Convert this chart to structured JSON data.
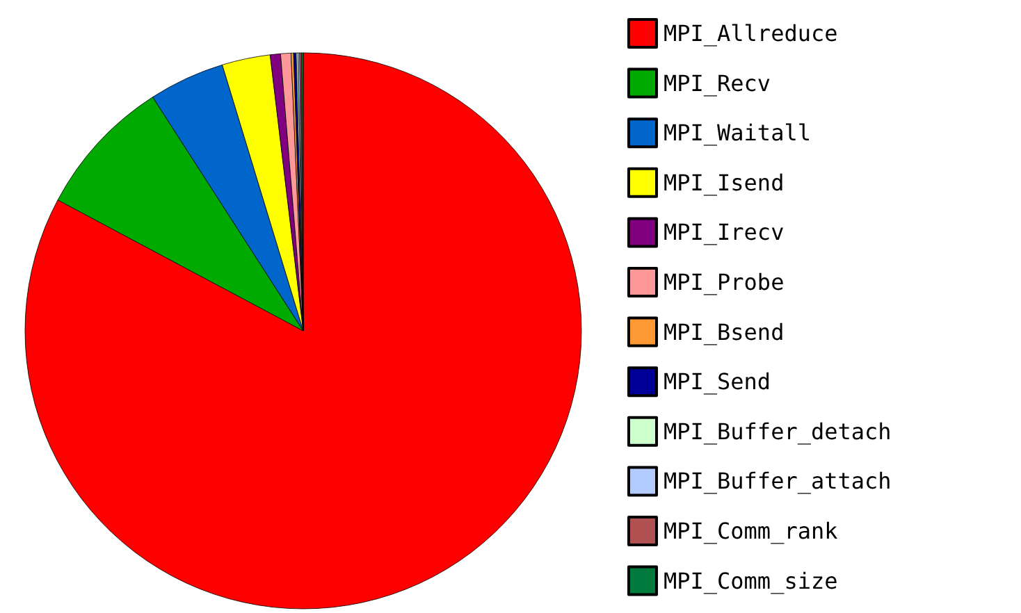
{
  "chart_data": {
    "type": "pie",
    "legend": "right",
    "categories": [
      "MPI_Allreduce",
      "MPI_Recv",
      "MPI_Waitall",
      "MPI_Isend",
      "MPI_Irecv",
      "MPI_Probe",
      "MPI_Bsend",
      "MPI_Send",
      "MPI_Buffer_detach",
      "MPI_Buffer_attach",
      "MPI_Comm_rank",
      "MPI_Comm_size"
    ],
    "values": [
      82.8,
      8.1,
      4.4,
      2.8,
      0.6,
      0.6,
      0.15,
      0.15,
      0.1,
      0.1,
      0.1,
      0.1
    ],
    "colors": [
      "#ff0000",
      "#00aa00",
      "#0066cc",
      "#ffff00",
      "#800080",
      "#ff9999",
      "#ff9933",
      "#000099",
      "#ccffcc",
      "#b3ccff",
      "#b05050",
      "#007a3d"
    ]
  }
}
